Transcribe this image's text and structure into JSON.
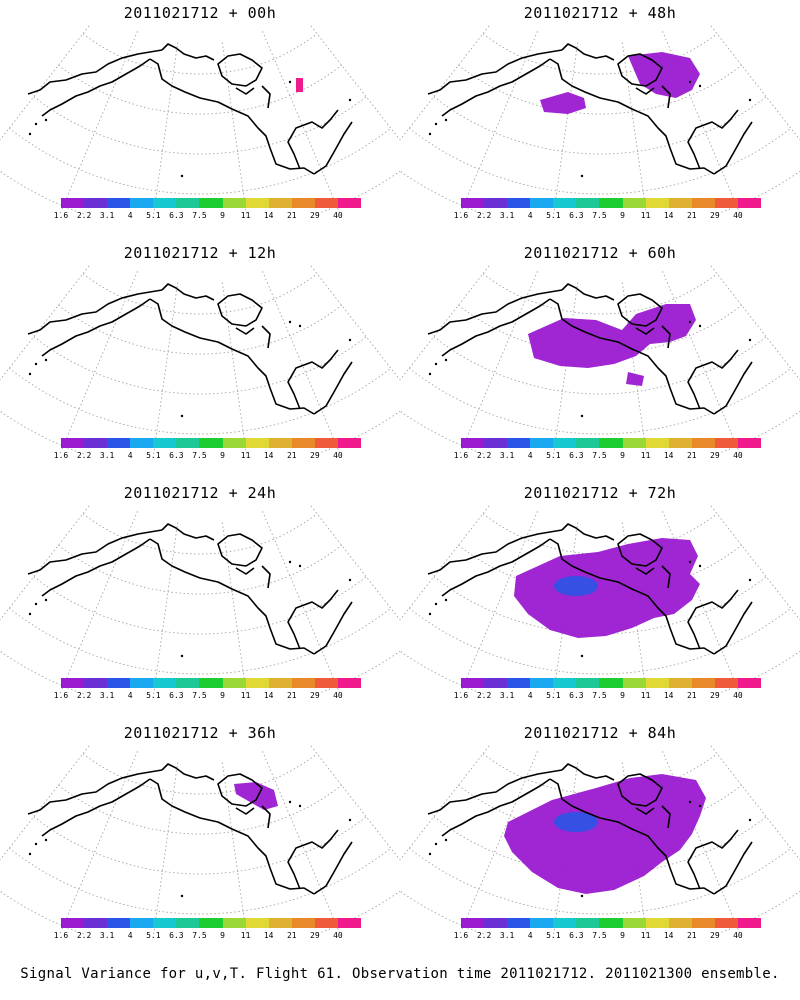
{
  "panels": [
    {
      "title": "2011021712 + 00h",
      "level": 0
    },
    {
      "title": "2011021712 + 48h",
      "level": 2
    },
    {
      "title": "2011021712 + 12h",
      "level": 0
    },
    {
      "title": "2011021712 + 60h",
      "level": 3
    },
    {
      "title": "2011021712 + 24h",
      "level": 0
    },
    {
      "title": "2011021712 + 72h",
      "level": 4
    },
    {
      "title": "2011021712 + 36h",
      "level": 1
    },
    {
      "title": "2011021712 + 84h",
      "level": 5
    }
  ],
  "colorbar": {
    "colors": [
      "#9a1ad0",
      "#6b2fd6",
      "#2a55e6",
      "#1aa8f0",
      "#18c8d0",
      "#1cc896",
      "#1ccc30",
      "#9ad83a",
      "#e0d834",
      "#e0b030",
      "#e88a2a",
      "#ee5a3a",
      "#ef1a8c"
    ],
    "labels": [
      "1.6",
      "2.2",
      "3.1",
      "4",
      "5.1",
      "6.3",
      "7.5",
      "9",
      "11",
      "14",
      "21",
      "29",
      "40"
    ]
  },
  "footer": "Signal Variance for u,v,T. Flight 61. Observation time 2011021712. 2011021300 ensemble."
}
